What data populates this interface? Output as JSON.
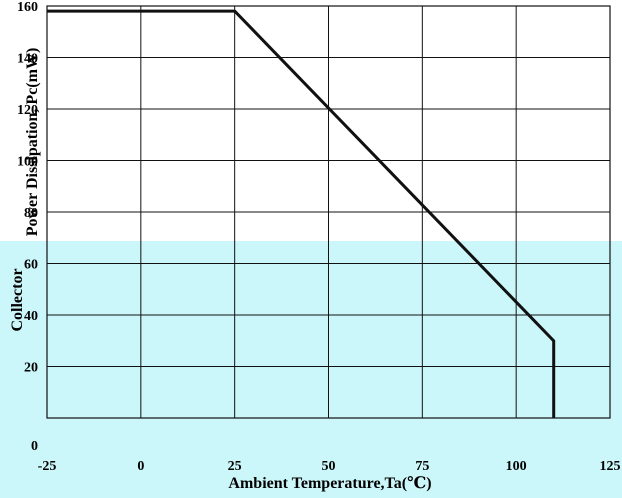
{
  "chart_data": {
    "type": "line",
    "title": "",
    "xlabel": "Ambient Temperature,Ta(℃)",
    "ylabel": "Collector Power Dissipation, Pc(mW)",
    "ylabel_upper": "Power Dissipation, Pc(mW)",
    "ylabel_lower": "Collector",
    "xlim": [
      -25,
      125
    ],
    "ylim": [
      0,
      160
    ],
    "x_ticks": [
      -25,
      0,
      25,
      50,
      75,
      100,
      125
    ],
    "y_ticks": [
      0,
      20,
      40,
      60,
      80,
      100,
      120,
      140,
      160
    ],
    "x_tick_labels": [
      "-25",
      "0",
      "25",
      "50",
      "75",
      "100",
      "125"
    ],
    "y_tick_labels": [
      "0",
      "20",
      "40",
      "60",
      "80",
      "100",
      "120",
      "140",
      "160"
    ],
    "grid": true,
    "series": [
      {
        "name": "",
        "x": [
          -25,
          25,
          110,
          110
        ],
        "y": [
          158,
          158,
          30,
          0
        ]
      }
    ],
    "colors": {
      "background_upper": "#ffffff",
      "background_lower": "#ccf7fa",
      "line": "#111111"
    }
  }
}
